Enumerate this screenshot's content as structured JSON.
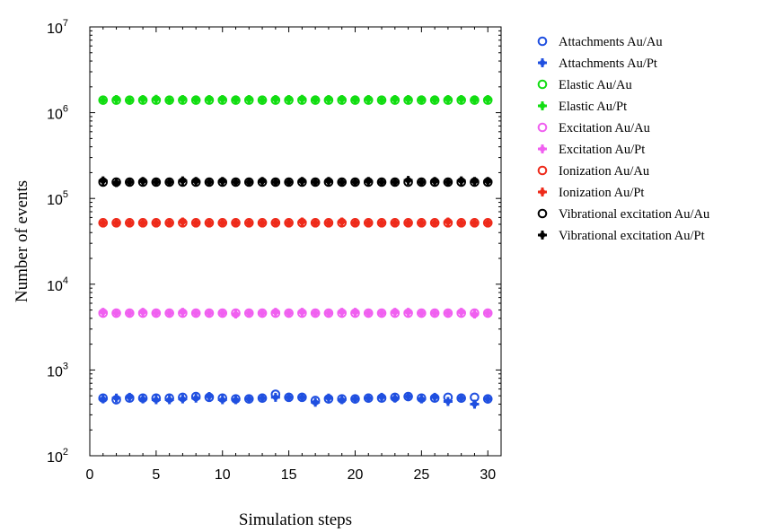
{
  "chart_data": {
    "type": "scatter",
    "xlabel": "Simulation steps",
    "ylabel": "Number of events",
    "x_scale": "linear",
    "y_scale": "log",
    "xlim": [
      0,
      31
    ],
    "ylim": [
      100,
      10000000
    ],
    "x_ticks": [
      "0",
      "5",
      "10",
      "15",
      "20",
      "25",
      "30"
    ],
    "y_ticks": [
      {
        "base": "10",
        "exp": "2"
      },
      {
        "base": "10",
        "exp": "3"
      },
      {
        "base": "10",
        "exp": "4"
      },
      {
        "base": "10",
        "exp": "5"
      },
      {
        "base": "10",
        "exp": "6"
      },
      {
        "base": "10",
        "exp": "7"
      }
    ],
    "legend_position": "outside right",
    "grid": false,
    "x": [
      1,
      2,
      3,
      4,
      5,
      6,
      7,
      8,
      9,
      10,
      11,
      12,
      13,
      14,
      15,
      16,
      17,
      18,
      19,
      20,
      21,
      22,
      23,
      24,
      25,
      26,
      27,
      28,
      29,
      30
    ],
    "series": [
      {
        "name": "Attachments Au/Au",
        "color": "#1f4fe0",
        "marker": "open-circle",
        "values": [
          470,
          450,
          470,
          470,
          470,
          470,
          480,
          490,
          480,
          470,
          460,
          460,
          470,
          520,
          480,
          480,
          440,
          460,
          460,
          460,
          470,
          470,
          480,
          490,
          470,
          470,
          480,
          470,
          480,
          460
        ]
      },
      {
        "name": "Attachments Au/Pt",
        "color": "#1f4fe0",
        "marker": "filled-plus",
        "values": [
          460,
          470,
          480,
          460,
          450,
          450,
          460,
          470,
          490,
          450,
          450,
          460,
          470,
          480,
          480,
          480,
          420,
          470,
          450,
          460,
          470,
          480,
          470,
          490,
          460,
          480,
          430,
          470,
          400,
          460
        ]
      },
      {
        "name": "Elastic Au/Au",
        "color": "#11dd11",
        "marker": "open-circle",
        "values": [
          1400000,
          1400000,
          1400000,
          1400000,
          1400000,
          1400000,
          1400000,
          1400000,
          1400000,
          1400000,
          1400000,
          1400000,
          1400000,
          1400000,
          1400000,
          1400000,
          1400000,
          1400000,
          1400000,
          1400000,
          1400000,
          1400000,
          1400000,
          1400000,
          1400000,
          1400000,
          1400000,
          1400000,
          1400000,
          1400000
        ]
      },
      {
        "name": "Elastic Au/Pt",
        "color": "#11dd11",
        "marker": "filled-plus",
        "values": [
          1400000,
          1420000,
          1400000,
          1420000,
          1430000,
          1400000,
          1420000,
          1410000,
          1420000,
          1420000,
          1410000,
          1420000,
          1400000,
          1420000,
          1420000,
          1430000,
          1410000,
          1420000,
          1420000,
          1410000,
          1420000,
          1400000,
          1420000,
          1420000,
          1410000,
          1410000,
          1420000,
          1420000,
          1410000,
          1420000
        ]
      },
      {
        "name": "Excitation Au/Au",
        "color": "#f060f0",
        "marker": "open-circle",
        "values": [
          4600,
          4600,
          4600,
          4600,
          4600,
          4600,
          4600,
          4600,
          4600,
          4600,
          4600,
          4600,
          4600,
          4600,
          4600,
          4600,
          4600,
          4600,
          4600,
          4600,
          4600,
          4600,
          4600,
          4600,
          4600,
          4600,
          4600,
          4600,
          4600,
          4600
        ]
      },
      {
        "name": "Excitation Au/Pt",
        "color": "#f060f0",
        "marker": "filled-plus",
        "values": [
          4700,
          4600,
          4600,
          4700,
          4600,
          4600,
          4700,
          4600,
          4600,
          4600,
          4500,
          4600,
          4600,
          4700,
          4600,
          4700,
          4600,
          4600,
          4700,
          4700,
          4600,
          4600,
          4700,
          4700,
          4600,
          4600,
          4600,
          4700,
          4500,
          4600
        ]
      },
      {
        "name": "Ionization Au/Au",
        "color": "#ee2a1a",
        "marker": "open-circle",
        "values": [
          52000,
          52000,
          52000,
          52000,
          52000,
          52000,
          52000,
          52000,
          52000,
          52000,
          52000,
          52000,
          52000,
          52000,
          52000,
          52000,
          52000,
          52000,
          52000,
          52000,
          52000,
          52000,
          52000,
          52000,
          52000,
          52000,
          52000,
          52000,
          52000,
          52000
        ]
      },
      {
        "name": "Ionization Au/Pt",
        "color": "#ee2a1a",
        "marker": "filled-plus",
        "values": [
          52000,
          52000,
          52000,
          52000,
          52000,
          52000,
          53000,
          52000,
          52000,
          52000,
          52000,
          52000,
          52000,
          52000,
          52000,
          53000,
          52000,
          52000,
          53000,
          52000,
          52000,
          52000,
          52000,
          52000,
          52000,
          52000,
          53000,
          52000,
          52000,
          52000
        ]
      },
      {
        "name": "Vibrational excitation Au/Au",
        "color": "#000000",
        "marker": "open-circle",
        "values": [
          155000,
          155000,
          155000,
          155000,
          155000,
          155000,
          155000,
          155000,
          155000,
          155000,
          155000,
          155000,
          155000,
          155000,
          155000,
          155000,
          155000,
          155000,
          155000,
          155000,
          155000,
          155000,
          155000,
          155000,
          155000,
          155000,
          155000,
          155000,
          155000,
          155000
        ]
      },
      {
        "name": "Vibrational excitation Au/Pt",
        "color": "#000000",
        "marker": "filled-plus",
        "values": [
          160000,
          153000,
          155000,
          158000,
          155000,
          155000,
          160000,
          158000,
          155000,
          158000,
          155000,
          155000,
          158000,
          155000,
          155000,
          158000,
          155000,
          158000,
          155000,
          155000,
          158000,
          155000,
          155000,
          162000,
          155000,
          158000,
          155000,
          160000,
          158000,
          158000
        ]
      }
    ]
  }
}
